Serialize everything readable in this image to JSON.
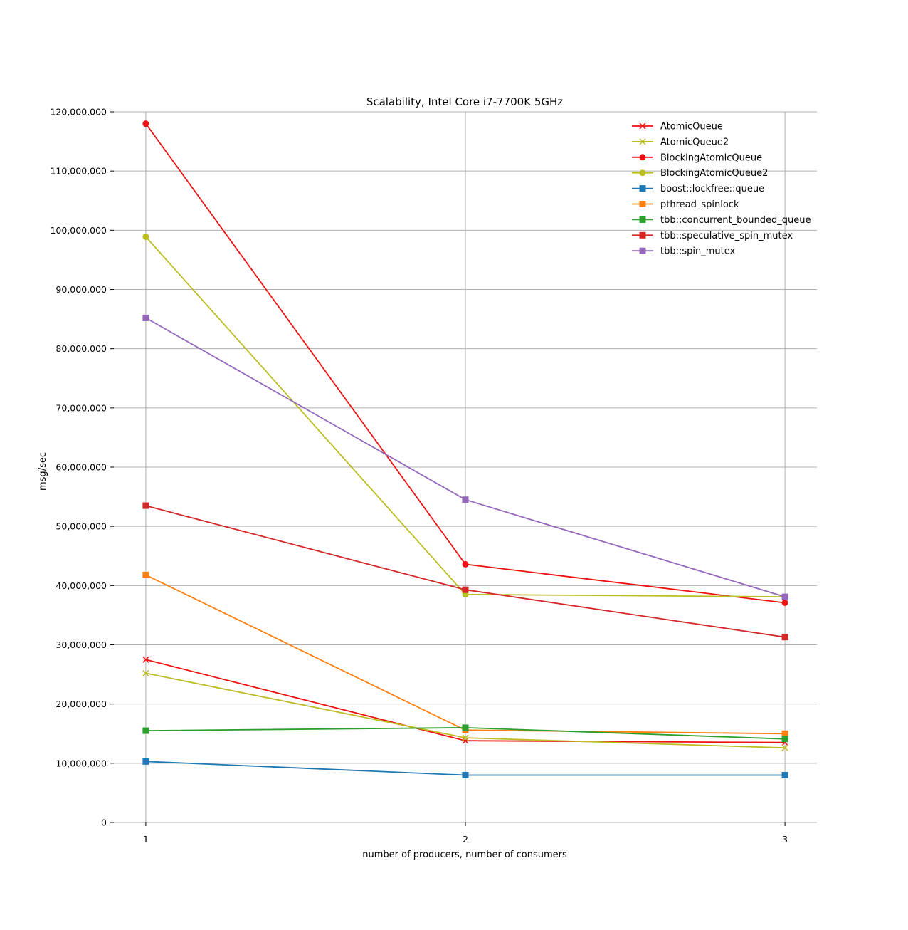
{
  "chart_data": {
    "type": "line",
    "title": "Scalability, Intel Core i7-7700K 5GHz",
    "xlabel": "number of producers, number of consumers",
    "ylabel": "msg/sec",
    "x": [
      1,
      2,
      3
    ],
    "x_tick_labels": [
      "1",
      "2",
      "3"
    ],
    "xlim": [
      0.9,
      3.1
    ],
    "ylim": [
      0,
      120000000
    ],
    "y_ticks": [
      0,
      10000000,
      20000000,
      30000000,
      40000000,
      50000000,
      60000000,
      70000000,
      80000000,
      90000000,
      100000000,
      110000000,
      120000000
    ],
    "y_tick_labels": [
      "0",
      "10,000,000",
      "20,000,000",
      "30,000,000",
      "40,000,000",
      "50,000,000",
      "60,000,000",
      "70,000,000",
      "80,000,000",
      "90,000,000",
      "100,000,000",
      "110,000,000",
      "120,000,000"
    ],
    "grid": true,
    "legend_position": "top-right",
    "series": [
      {
        "name": "AtomicQueue",
        "color": "#ee1111",
        "marker": "x",
        "values": [
          27500000,
          13800000,
          13500000
        ]
      },
      {
        "name": "AtomicQueue2",
        "color": "#bcbd22",
        "marker": "x",
        "values": [
          25200000,
          14300000,
          12600000
        ]
      },
      {
        "name": "BlockingAtomicQueue",
        "color": "#ee1111",
        "marker": "circle",
        "values": [
          118000000,
          43600000,
          37100000
        ]
      },
      {
        "name": "BlockingAtomicQueue2",
        "color": "#bcbd22",
        "marker": "circle",
        "values": [
          98900000,
          38500000,
          38100000
        ]
      },
      {
        "name": "boost::lockfree::queue",
        "color": "#1f77b4",
        "marker": "square",
        "values": [
          10300000,
          8000000,
          8000000
        ]
      },
      {
        "name": "pthread_spinlock",
        "color": "#ff7f0e",
        "marker": "square",
        "values": [
          41800000,
          15600000,
          15000000
        ]
      },
      {
        "name": "tbb::concurrent_bounded_queue",
        "color": "#2ca02c",
        "marker": "square",
        "values": [
          15500000,
          16000000,
          14100000
        ]
      },
      {
        "name": "tbb::speculative_spin_mutex",
        "color": "#d62728",
        "marker": "square",
        "values": [
          53500000,
          39300000,
          31300000
        ]
      },
      {
        "name": "tbb::spin_mutex",
        "color": "#9467bd",
        "marker": "square",
        "values": [
          85200000,
          54500000,
          38100000
        ]
      }
    ]
  }
}
